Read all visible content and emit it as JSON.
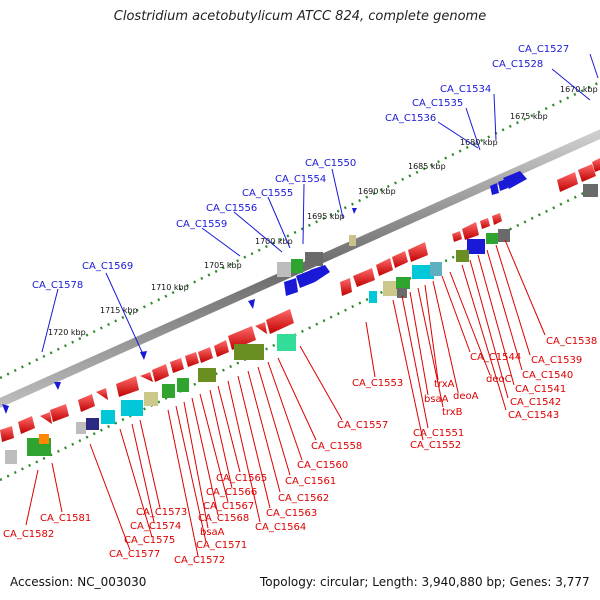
{
  "title": "Clostridium acetobutylicum ATCC 824, complete genome",
  "footer": {
    "accession": "Accession: NC_003030",
    "summary": "Topology: circular; Length: 3,940,880 bp; Genes: 3,777"
  },
  "scale_labels": [
    "1670 kbp",
    "1675 kbp",
    "1680 kbp",
    "1685 kbp",
    "1690 kbp",
    "1695 kbp",
    "1700 kbp",
    "1705 kbp",
    "1710 kbp",
    "1715 kbp",
    "1720 kbp"
  ],
  "outer_genes": [
    "CA_C1527",
    "CA_C1528",
    "CA_C1534",
    "CA_C1535",
    "CA_C1536",
    "CA_C1550",
    "CA_C1554",
    "CA_C1555",
    "CA_C1556",
    "CA_C1559",
    "CA_C1569",
    "CA_C1578"
  ],
  "inner_genes": [
    "CA_C1538",
    "CA_C1539",
    "CA_C1540",
    "CA_C1541",
    "CA_C1542",
    "CA_C1543",
    "deoC",
    "CA_C1544",
    "deoA",
    "trxA",
    "trxB",
    "bsaA",
    "CA_C1553",
    "CA_C1551",
    "CA_C1552",
    "CA_C1557",
    "CA_C1558",
    "CA_C1560",
    "CA_C1561",
    "CA_C1562",
    "CA_C1563",
    "CA_C1564",
    "CA_C1565",
    "CA_C1566",
    "CA_C1567",
    "CA_C1568",
    "bsaA",
    "CA_C1571",
    "CA_C1572",
    "CA_C1573",
    "CA_C1574",
    "CA_C1575",
    "CA_C1577",
    "CA_C1581",
    "CA_C1582"
  ],
  "colors": {
    "label_outer": "#1a1ad6",
    "label_inner": "#dd0000",
    "backbone": "#7a7a7a",
    "tick": "#2e8b2e"
  }
}
